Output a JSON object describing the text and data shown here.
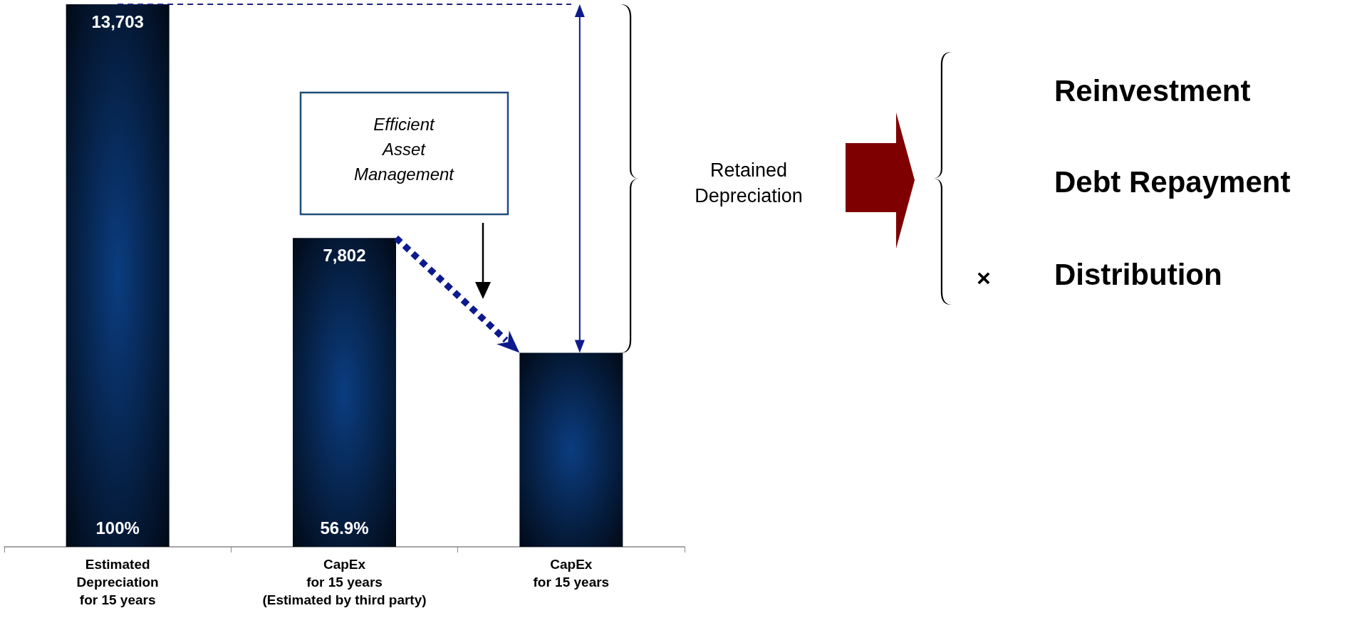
{
  "chart_data": {
    "type": "bar",
    "categories": [
      "Estimated\nDepreciation\nfor 15 years",
      "CapEx\nfor 15 years\n(Estimated by third party)",
      "CapEx\nfor 15 years"
    ],
    "values": [
      13703,
      7802,
      4900
    ],
    "value_labels": [
      "13,703",
      "7,802",
      null
    ],
    "color": "#0b3d80",
    "ylim": [
      0,
      13703
    ],
    "tick_labels": "x",
    "grid": false,
    "ref_lines": [
      {
        "axis": "y",
        "value": 13703,
        "label": null,
        "color": "#1a237e",
        "line_style": "dashed"
      }
    ],
    "annotations": [
      {
        "text": "100%",
        "x": "Estimated\nDepreciation\nfor 15 years",
        "y": 0
      },
      {
        "text": "56.9%",
        "x": "CapEx\nfor 15 years\n(Estimated by third party)",
        "y": 0
      },
      "Efficient Asset Management",
      "Retained\nDepreciation",
      "Reinvestment",
      "Debt Repayment",
      "×",
      "Distribution"
    ]
  }
}
